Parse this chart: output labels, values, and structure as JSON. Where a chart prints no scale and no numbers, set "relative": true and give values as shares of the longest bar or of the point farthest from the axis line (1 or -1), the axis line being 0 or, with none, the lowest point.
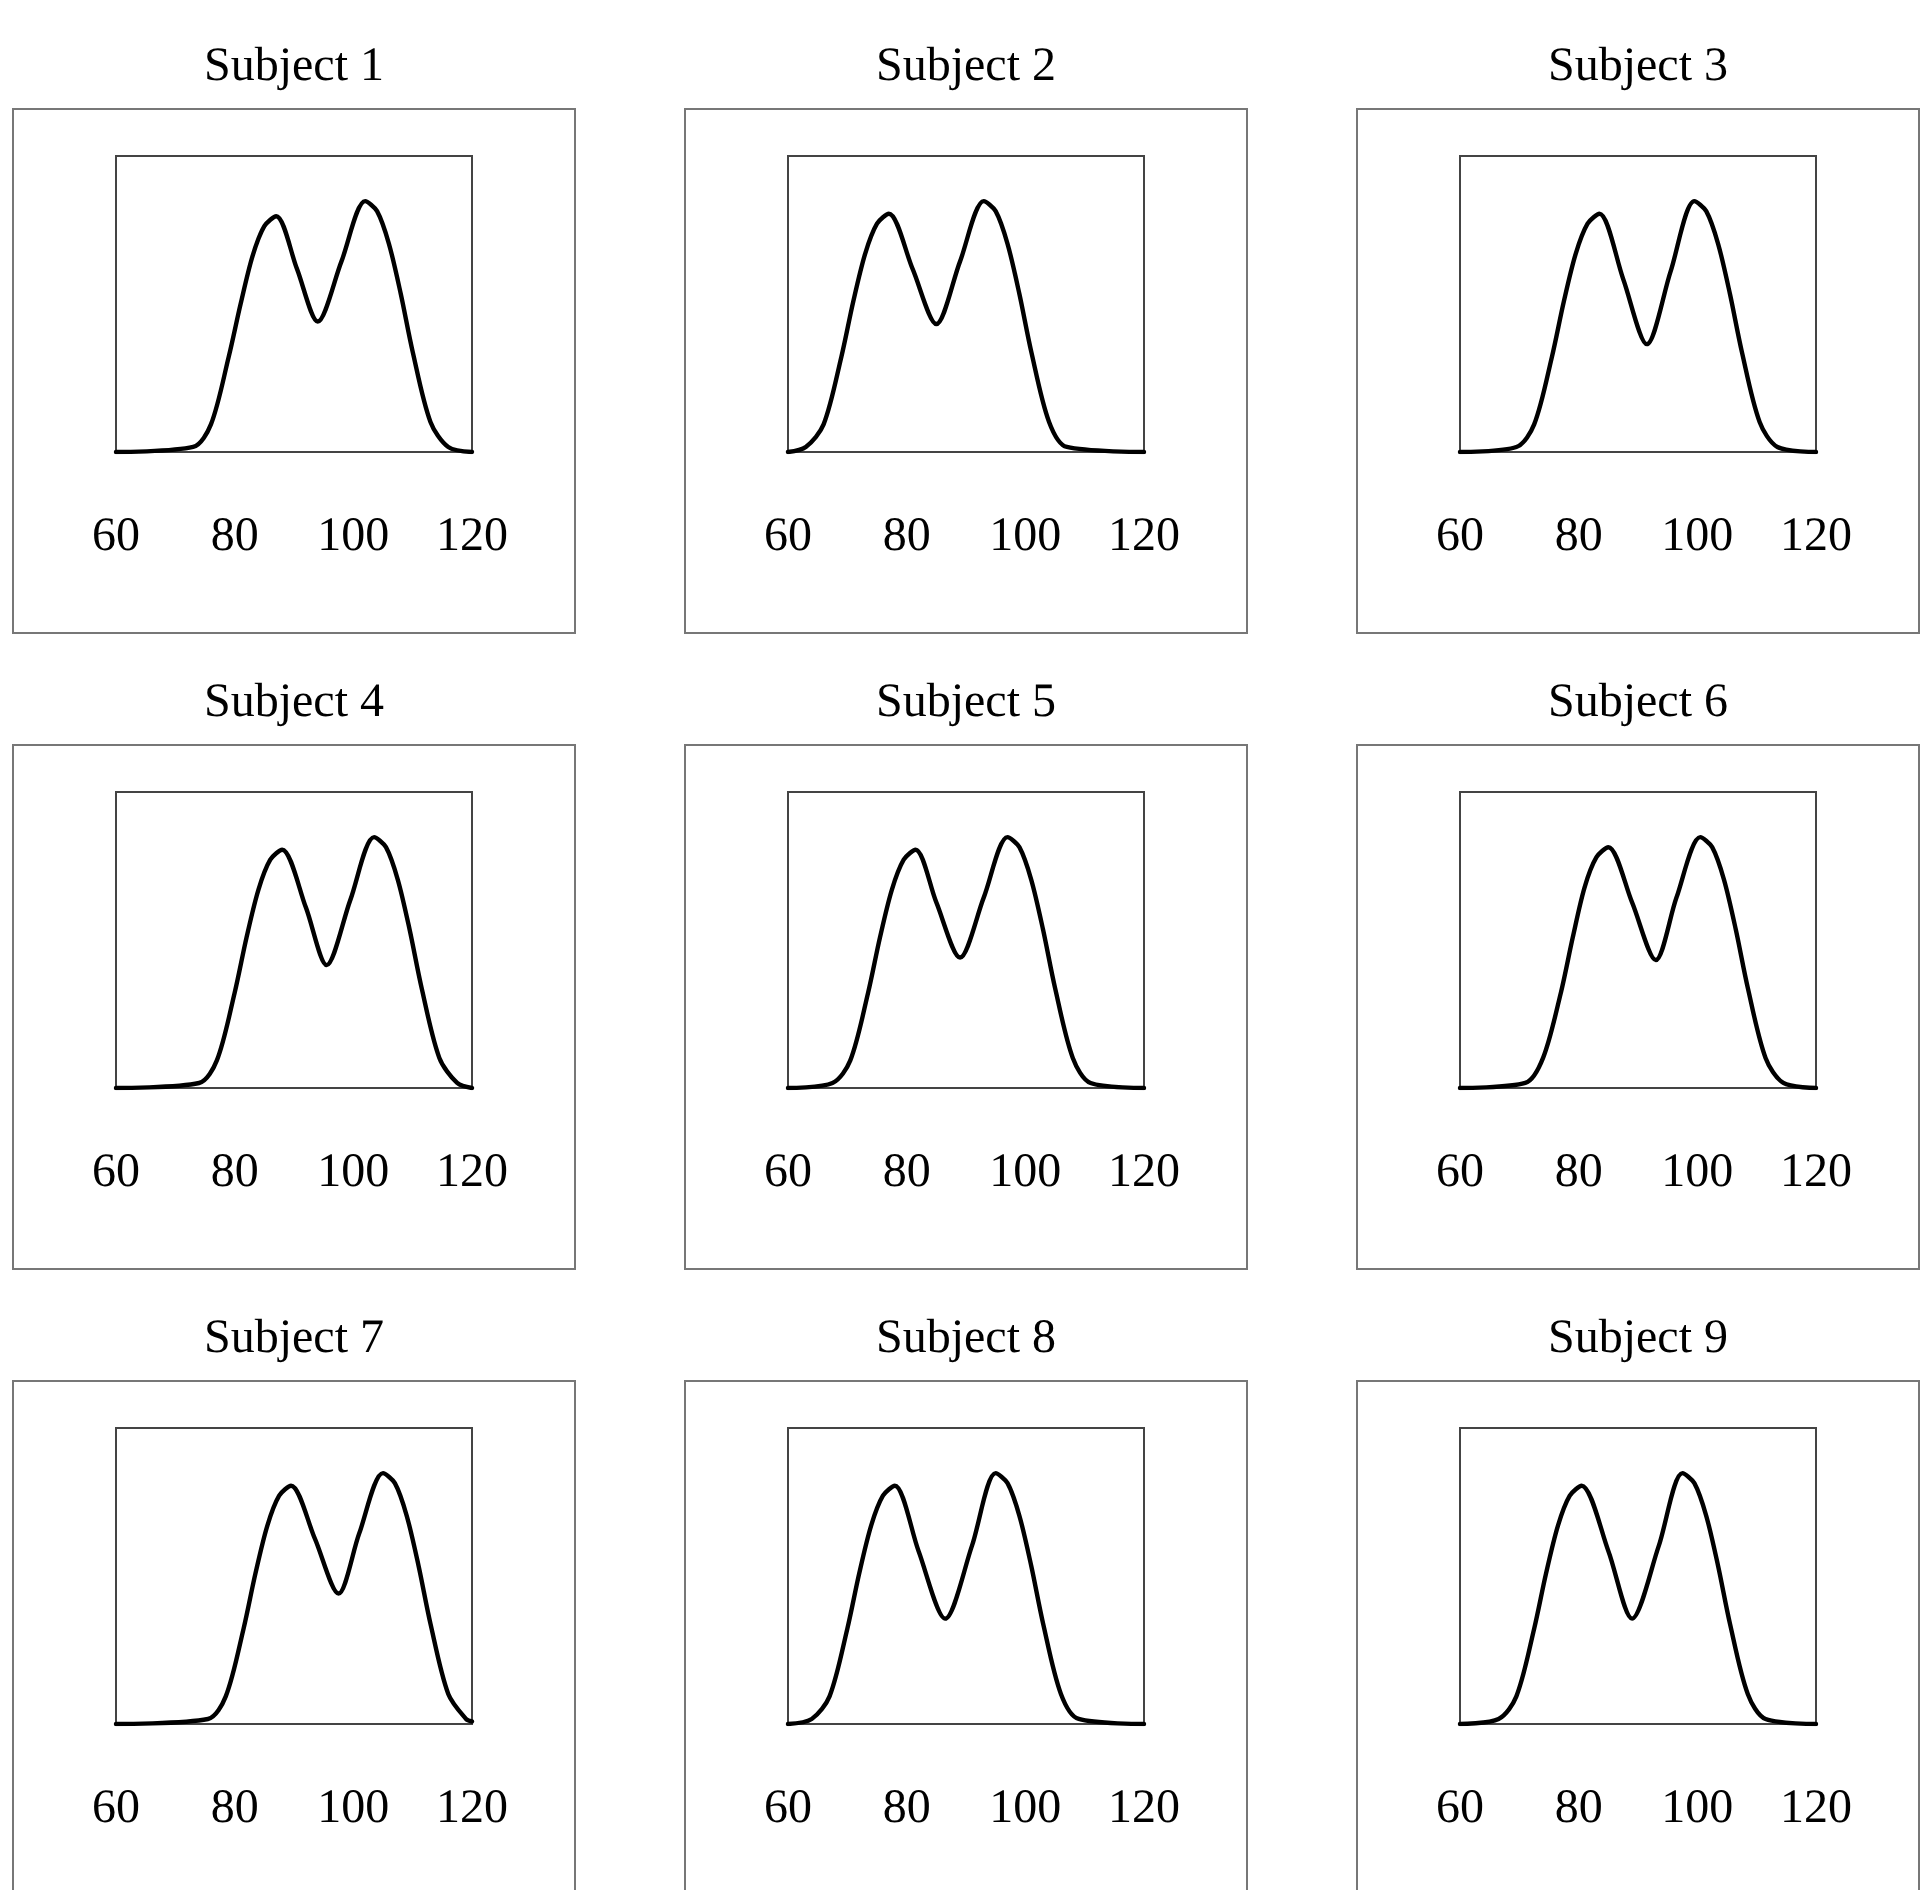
{
  "chart_data": [
    {
      "type": "line",
      "title": "Subject 1",
      "relative": true,
      "tick_labels": "x",
      "xlim": [
        60,
        120
      ],
      "xticks": [
        60,
        80,
        100,
        120
      ],
      "color": "#000000",
      "x": [
        60,
        73,
        76,
        79,
        81,
        83,
        85,
        87,
        90.5,
        94,
        98,
        102,
        104,
        106,
        108,
        110,
        113,
        116,
        120
      ],
      "values": [
        0,
        0.02,
        0.11,
        0.38,
        0.59,
        0.78,
        0.9,
        0.94,
        0.73,
        0.52,
        0.76,
        1,
        0.96,
        0.83,
        0.63,
        0.4,
        0.12,
        0.02,
        0
      ]
    },
    {
      "type": "line",
      "title": "Subject 2",
      "relative": true,
      "tick_labels": "x",
      "xlim": [
        60,
        120
      ],
      "xticks": [
        60,
        80,
        100,
        120
      ],
      "color": "#000000",
      "x": [
        60,
        63,
        66,
        69,
        71,
        73,
        75,
        77,
        81,
        85,
        89,
        93,
        95,
        97,
        99,
        101,
        104,
        107,
        120
      ],
      "values": [
        0,
        0.02,
        0.11,
        0.38,
        0.6,
        0.79,
        0.91,
        0.95,
        0.73,
        0.51,
        0.76,
        1,
        0.96,
        0.83,
        0.63,
        0.4,
        0.12,
        0.02,
        0
      ]
    },
    {
      "type": "line",
      "title": "Subject 3",
      "relative": true,
      "tick_labels": "x",
      "xlim": [
        60,
        120
      ],
      "xticks": [
        60,
        80,
        100,
        120
      ],
      "color": "#000000",
      "x": [
        60,
        69.5,
        72.5,
        75.5,
        77.5,
        79.5,
        81.5,
        83.5,
        87.5,
        91.5,
        95.5,
        99.5,
        101.5,
        103.5,
        105.5,
        107.5,
        110.5,
        113.5,
        120
      ],
      "values": [
        0,
        0.02,
        0.11,
        0.38,
        0.6,
        0.79,
        0.91,
        0.95,
        0.69,
        0.43,
        0.72,
        1,
        0.96,
        0.83,
        0.63,
        0.4,
        0.12,
        0.02,
        0
      ]
    },
    {
      "type": "line",
      "title": "Subject 4",
      "relative": true,
      "tick_labels": "x",
      "xlim": [
        60,
        120
      ],
      "xticks": [
        60,
        80,
        100,
        120
      ],
      "color": "#000000",
      "x": [
        60,
        74,
        77,
        80,
        82,
        84,
        86,
        88,
        92,
        95.5,
        99.5,
        103.5,
        105.5,
        107.5,
        109.5,
        111.5,
        114.5,
        117.5,
        120
      ],
      "values": [
        0,
        0.02,
        0.11,
        0.38,
        0.6,
        0.79,
        0.91,
        0.95,
        0.72,
        0.49,
        0.75,
        1,
        0.96,
        0.83,
        0.63,
        0.4,
        0.12,
        0.02,
        0
      ]
    },
    {
      "type": "line",
      "title": "Subject 5",
      "relative": true,
      "tick_labels": "x",
      "xlim": [
        60,
        120
      ],
      "xticks": [
        60,
        80,
        100,
        120
      ],
      "color": "#000000",
      "x": [
        60,
        67.5,
        70.5,
        73.5,
        75.5,
        77.5,
        79.5,
        81.5,
        85,
        89,
        93,
        97,
        99,
        101,
        103,
        105,
        108,
        111,
        120
      ],
      "values": [
        0,
        0.02,
        0.11,
        0.38,
        0.6,
        0.79,
        0.91,
        0.95,
        0.74,
        0.52,
        0.76,
        1,
        0.96,
        0.83,
        0.63,
        0.4,
        0.12,
        0.02,
        0
      ]
    },
    {
      "type": "line",
      "title": "Subject 6",
      "relative": true,
      "tick_labels": "x",
      "xlim": [
        60,
        120
      ],
      "xticks": [
        60,
        80,
        100,
        120
      ],
      "color": "#000000",
      "x": [
        60,
        71,
        74,
        77,
        79,
        81,
        83,
        85,
        89,
        93,
        96.5,
        100.5,
        102.5,
        104.5,
        106.5,
        108.5,
        111.5,
        114.5,
        120
      ],
      "values": [
        0,
        0.02,
        0.12,
        0.38,
        0.6,
        0.8,
        0.92,
        0.96,
        0.74,
        0.51,
        0.76,
        1,
        0.96,
        0.83,
        0.63,
        0.4,
        0.12,
        0.02,
        0
      ]
    },
    {
      "type": "line",
      "title": "Subject 7",
      "relative": true,
      "tick_labels": "x",
      "xlim": [
        60,
        120
      ],
      "xticks": [
        60,
        80,
        100,
        120
      ],
      "color": "#000000",
      "x": [
        60,
        75.5,
        78.5,
        81.5,
        83.5,
        85.5,
        87.5,
        89.5,
        93.5,
        97.5,
        101,
        105,
        107,
        109,
        111,
        113,
        116,
        119,
        120
      ],
      "values": [
        0,
        0.02,
        0.11,
        0.38,
        0.6,
        0.79,
        0.91,
        0.95,
        0.74,
        0.52,
        0.76,
        1,
        0.96,
        0.83,
        0.63,
        0.4,
        0.12,
        0.02,
        0.01
      ]
    },
    {
      "type": "line",
      "title": "Subject 8",
      "relative": true,
      "tick_labels": "x",
      "xlim": [
        60,
        120
      ],
      "xticks": [
        60,
        80,
        100,
        120
      ],
      "color": "#000000",
      "x": [
        60,
        64,
        67,
        70,
        72,
        74,
        76,
        78,
        82,
        86.5,
        91,
        95,
        97,
        99,
        101,
        103,
        106,
        109,
        120
      ],
      "values": [
        0,
        0.02,
        0.11,
        0.38,
        0.6,
        0.79,
        0.91,
        0.95,
        0.69,
        0.42,
        0.71,
        1,
        0.96,
        0.83,
        0.63,
        0.4,
        0.12,
        0.02,
        0
      ]
    },
    {
      "type": "line",
      "title": "Subject 9",
      "relative": true,
      "tick_labels": "x",
      "xlim": [
        60,
        120
      ],
      "xticks": [
        60,
        80,
        100,
        120
      ],
      "color": "#000000",
      "x": [
        60,
        66.5,
        69.5,
        72.5,
        74.5,
        76.5,
        78.5,
        80.5,
        85,
        89,
        93.5,
        97.5,
        99.5,
        101.5,
        103.5,
        105.5,
        108.5,
        111.5,
        120
      ],
      "values": [
        0,
        0.02,
        0.11,
        0.38,
        0.6,
        0.79,
        0.91,
        0.95,
        0.69,
        0.42,
        0.71,
        1,
        0.96,
        0.83,
        0.63,
        0.4,
        0.12,
        0.02,
        0
      ]
    }
  ]
}
